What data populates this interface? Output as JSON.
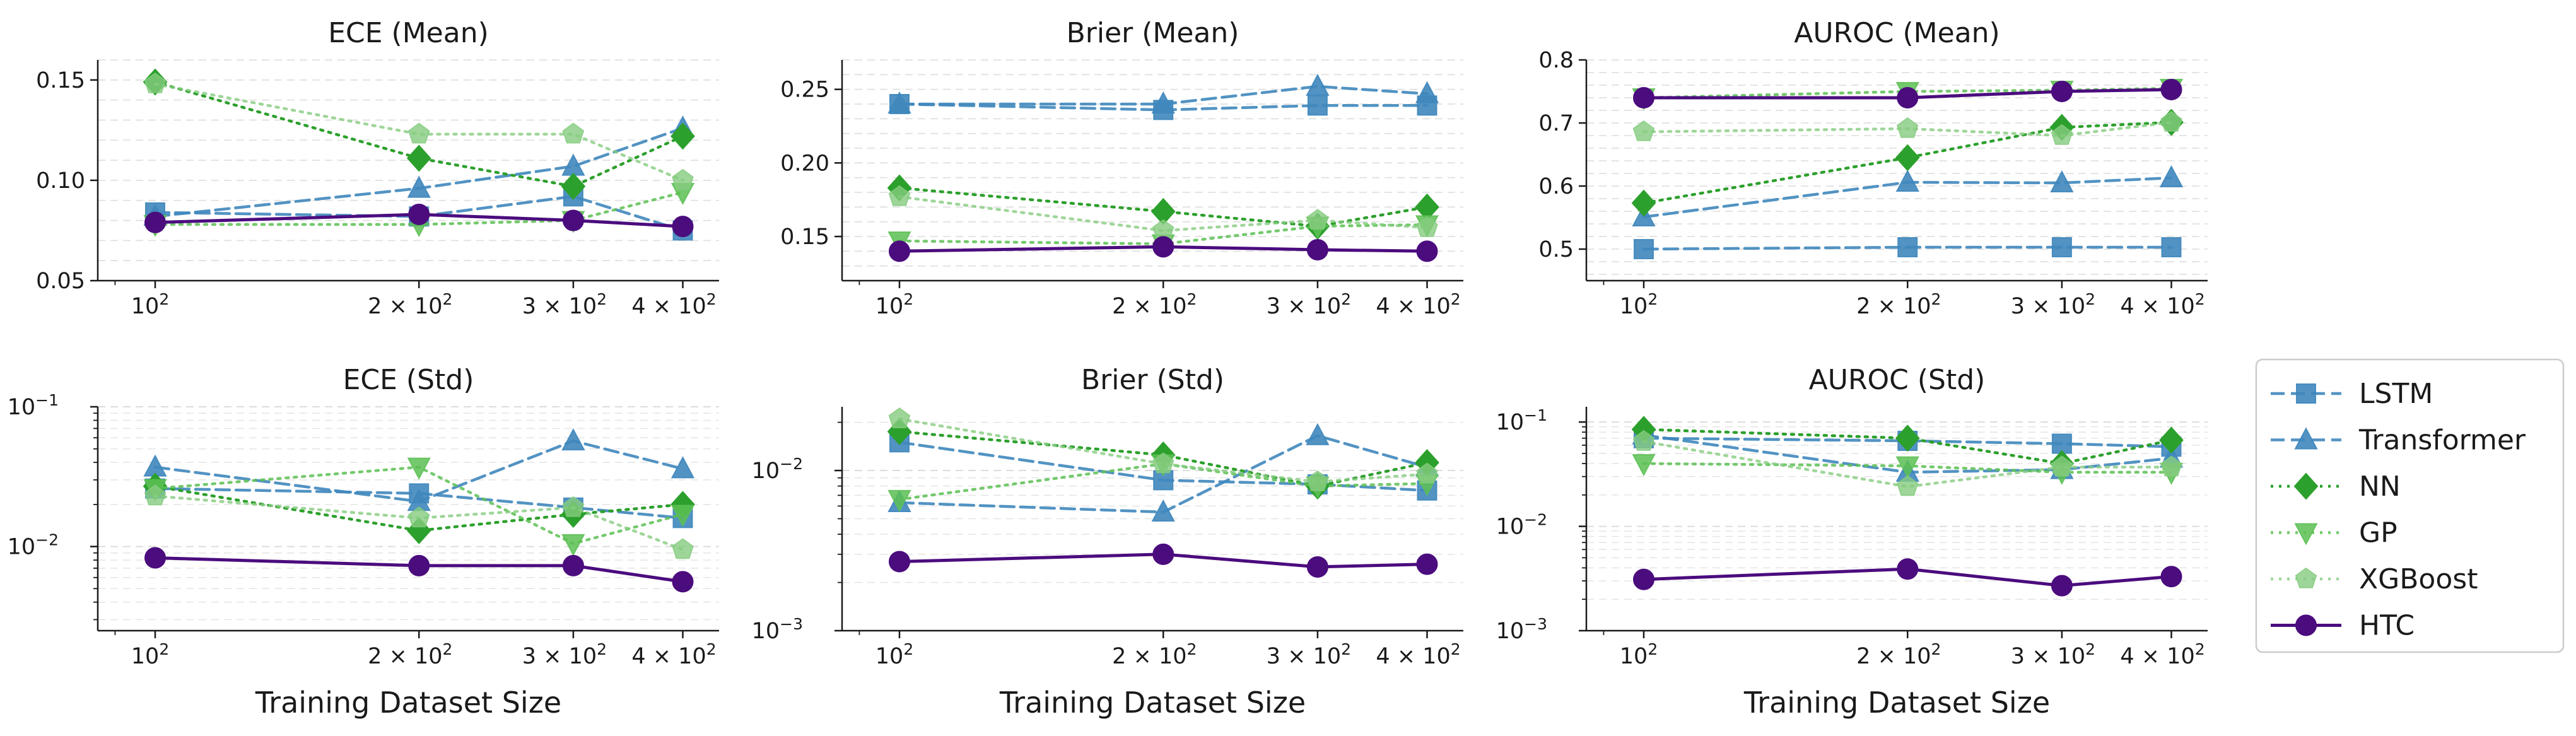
{
  "x_sizes": [
    100,
    200,
    300,
    400
  ],
  "x_tick_labels": [
    {
      "base": "10",
      "exp": "2"
    },
    {
      "base": "2 × 10",
      "exp": "2"
    },
    {
      "base": "3 × 10",
      "exp": "2"
    },
    {
      "base": "4 × 10",
      "exp": "2"
    }
  ],
  "xlabel": "Training Dataset Size",
  "series_styles": [
    {
      "name": "LSTM",
      "color": "#3f87bd",
      "dash": "dashed",
      "marker": "square",
      "alpha": 0.9
    },
    {
      "name": "Transformer",
      "color": "#3f87bd",
      "dash": "dashed",
      "marker": "triangle-up",
      "alpha": 0.9
    },
    {
      "name": "NN",
      "color": "#2ca02c",
      "dash": "dotted",
      "marker": "diamond",
      "alpha": 1.0
    },
    {
      "name": "GP",
      "color": "#5cbf54",
      "dash": "dotted",
      "marker": "triangle-down",
      "alpha": 0.85
    },
    {
      "name": "XGBoost",
      "color": "#86cc80",
      "dash": "dotted",
      "marker": "pentagon",
      "alpha": 0.8
    },
    {
      "name": "HTC",
      "color": "#4b0c7e",
      "dash": "solid",
      "marker": "circle",
      "alpha": 1.0
    }
  ],
  "chart_data": [
    {
      "type": "line",
      "title": "ECE (Mean)",
      "xlabel": "",
      "yscale": "linear",
      "ylim": [
        0.05,
        0.16
      ],
      "yticks": [
        0.05,
        0.1,
        0.15
      ],
      "ytick_labels": [
        "0.05",
        "0.10",
        "0.15"
      ],
      "x": [
        100,
        200,
        300,
        400
      ],
      "series": [
        {
          "name": "LSTM",
          "values": [
            0.084,
            0.082,
            0.092,
            0.075
          ]
        },
        {
          "name": "Transformer",
          "values": [
            0.082,
            0.096,
            0.107,
            0.126
          ]
        },
        {
          "name": "NN",
          "values": [
            0.149,
            0.111,
            0.097,
            0.122
          ]
        },
        {
          "name": "GP",
          "values": [
            0.078,
            0.078,
            0.08,
            0.094
          ]
        },
        {
          "name": "XGBoost",
          "values": [
            0.148,
            0.123,
            0.123,
            0.1
          ]
        },
        {
          "name": "HTC",
          "values": [
            0.079,
            0.083,
            0.08,
            0.077
          ]
        }
      ]
    },
    {
      "type": "line",
      "title": "Brier (Mean)",
      "xlabel": "",
      "yscale": "linear",
      "ylim": [
        0.12,
        0.27
      ],
      "yticks": [
        0.15,
        0.2,
        0.25
      ],
      "ytick_labels": [
        "0.15",
        "0.20",
        "0.25"
      ],
      "x": [
        100,
        200,
        300,
        400
      ],
      "series": [
        {
          "name": "LSTM",
          "values": [
            0.24,
            0.236,
            0.239,
            0.239
          ]
        },
        {
          "name": "Transformer",
          "values": [
            0.24,
            0.24,
            0.252,
            0.247
          ]
        },
        {
          "name": "NN",
          "values": [
            0.183,
            0.167,
            0.157,
            0.17
          ]
        },
        {
          "name": "GP",
          "values": [
            0.147,
            0.145,
            0.157,
            0.158
          ]
        },
        {
          "name": "XGBoost",
          "values": [
            0.177,
            0.154,
            0.161,
            0.156
          ]
        },
        {
          "name": "HTC",
          "values": [
            0.14,
            0.143,
            0.141,
            0.14
          ]
        }
      ]
    },
    {
      "type": "line",
      "title": "AUROC (Mean)",
      "xlabel": "",
      "yscale": "linear",
      "ylim": [
        0.45,
        0.8
      ],
      "yticks": [
        0.5,
        0.6,
        0.7,
        0.8
      ],
      "ytick_labels": [
        "0.5",
        "0.6",
        "0.7",
        "0.8"
      ],
      "x": [
        100,
        200,
        300,
        400
      ],
      "series": [
        {
          "name": "LSTM",
          "values": [
            0.5,
            0.503,
            0.503,
            0.503
          ]
        },
        {
          "name": "Transformer",
          "values": [
            0.551,
            0.606,
            0.605,
            0.613
          ]
        },
        {
          "name": "NN",
          "values": [
            0.573,
            0.645,
            0.693,
            0.701
          ]
        },
        {
          "name": "GP",
          "values": [
            0.74,
            0.75,
            0.752,
            0.755
          ]
        },
        {
          "name": "XGBoost",
          "values": [
            0.686,
            0.691,
            0.68,
            0.701
          ]
        },
        {
          "name": "HTC",
          "values": [
            0.74,
            0.74,
            0.75,
            0.753
          ]
        }
      ]
    },
    {
      "type": "line",
      "title": "ECE (Std)",
      "xlabel": "Training Dataset Size",
      "yscale": "log",
      "ylim": [
        0.0025,
        0.1
      ],
      "yticks": [
        0.01,
        0.1
      ],
      "ytick_labels": [
        {
          "base": "10",
          "exp": "−2"
        },
        {
          "base": "10",
          "exp": "−1"
        }
      ],
      "x": [
        100,
        200,
        300,
        400
      ],
      "series": [
        {
          "name": "LSTM",
          "values": [
            0.026,
            0.024,
            0.019,
            0.016
          ]
        },
        {
          "name": "Transformer",
          "values": [
            0.037,
            0.021,
            0.057,
            0.036
          ]
        },
        {
          "name": "NN",
          "values": [
            0.027,
            0.013,
            0.017,
            0.02
          ]
        },
        {
          "name": "GP",
          "values": [
            0.026,
            0.037,
            0.0105,
            0.017
          ]
        },
        {
          "name": "XGBoost",
          "values": [
            0.023,
            0.016,
            0.019,
            0.0095
          ]
        },
        {
          "name": "HTC",
          "values": [
            0.0083,
            0.0073,
            0.0073,
            0.0056
          ]
        }
      ]
    },
    {
      "type": "line",
      "title": "Brier (Std)",
      "xlabel": "Training Dataset Size",
      "yscale": "log",
      "ylim": [
        0.001,
        0.025
      ],
      "yticks": [
        0.001,
        0.01
      ],
      "ytick_labels": [
        {
          "base": "10",
          "exp": "−3"
        },
        {
          "base": "10",
          "exp": "−2"
        }
      ],
      "x": [
        100,
        200,
        300,
        400
      ],
      "series": [
        {
          "name": "LSTM",
          "values": [
            0.015,
            0.0087,
            0.0082,
            0.0075
          ]
        },
        {
          "name": "Transformer",
          "values": [
            0.0063,
            0.0055,
            0.0165,
            0.0105
          ]
        },
        {
          "name": "NN",
          "values": [
            0.0175,
            0.0125,
            0.008,
            0.0112
          ]
        },
        {
          "name": "GP",
          "values": [
            0.0066,
            0.011,
            0.008,
            0.0083
          ]
        },
        {
          "name": "XGBoost",
          "values": [
            0.021,
            0.011,
            0.0085,
            0.0095
          ]
        },
        {
          "name": "HTC",
          "values": [
            0.0027,
            0.003,
            0.0025,
            0.0026
          ]
        }
      ]
    },
    {
      "type": "line",
      "title": "AUROC (Std)",
      "xlabel": "Training Dataset Size",
      "yscale": "log",
      "ylim": [
        0.001,
        0.14
      ],
      "yticks": [
        0.001,
        0.01,
        0.1
      ],
      "ytick_labels": [
        {
          "base": "10",
          "exp": "−3"
        },
        {
          "base": "10",
          "exp": "−2"
        },
        {
          "base": "10",
          "exp": "−1"
        }
      ],
      "x": [
        100,
        200,
        300,
        400
      ],
      "series": [
        {
          "name": "LSTM",
          "values": [
            0.07,
            0.066,
            0.062,
            0.058
          ]
        },
        {
          "name": "Transformer",
          "values": [
            0.075,
            0.033,
            0.035,
            0.045
          ]
        },
        {
          "name": "NN",
          "values": [
            0.085,
            0.07,
            0.04,
            0.067
          ]
        },
        {
          "name": "GP",
          "values": [
            0.04,
            0.038,
            0.033,
            0.033
          ]
        },
        {
          "name": "XGBoost",
          "values": [
            0.065,
            0.024,
            0.037,
            0.037
          ]
        },
        {
          "name": "HTC",
          "values": [
            0.0031,
            0.0039,
            0.0027,
            0.0033
          ]
        }
      ]
    }
  ]
}
